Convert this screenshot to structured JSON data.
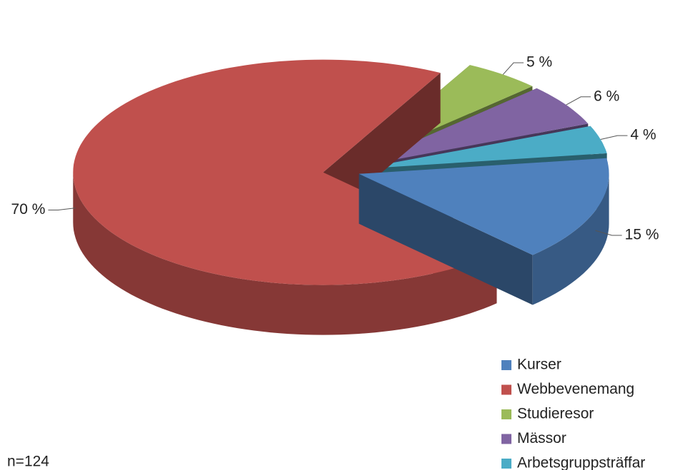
{
  "chart_data": {
    "type": "pie3d",
    "categories": [
      "Kurser",
      "Webbevenemang",
      "Studieresor",
      "Mässor",
      "Arbetsgruppsträffar"
    ],
    "values": [
      15,
      70,
      5,
      6,
      4
    ],
    "value_labels": [
      "15 %",
      "70 %",
      "5 %",
      "6 %",
      "4 %"
    ],
    "colors": [
      "#4f81bd",
      "#c0504d",
      "#9bbb59",
      "#8064a2",
      "#4bacc6"
    ],
    "legend": "bottom-right",
    "annotation": "n=124"
  }
}
